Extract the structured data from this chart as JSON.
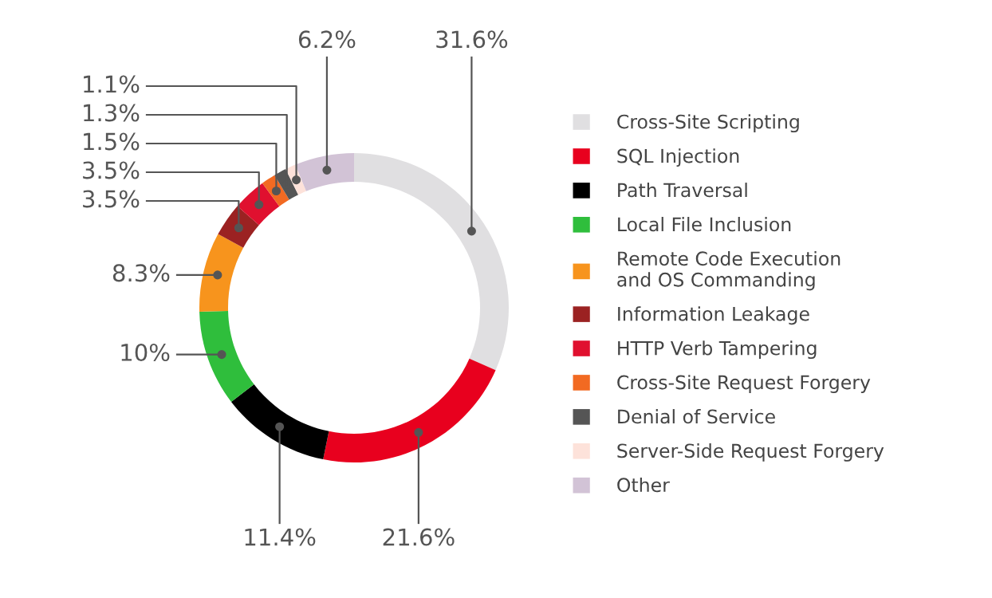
{
  "chart_data": {
    "type": "donut",
    "categories": [
      "Cross-Site Scripting",
      "SQL Injection",
      "Path Traversal",
      "Local File Inclusion",
      "Remote Code Execution\nand OS Commanding",
      "Information Leakage",
      "HTTP Verb Tampering",
      "Cross-Site Request Forgery",
      "Denial of Service",
      "Server-Side Request Forgery",
      "Other"
    ],
    "values": [
      31.6,
      21.6,
      11.4,
      10,
      8.3,
      3.5,
      3.5,
      1.5,
      1.3,
      1.1,
      6.2
    ],
    "colors": [
      "#e0dfe1",
      "#e8001e",
      "#000000",
      "#2fbe3c",
      "#f7941d",
      "#9b2222",
      "#e0102f",
      "#f26a22",
      "#555555",
      "#fde2da",
      "#d2c3d6"
    ],
    "value_labels": [
      "31.6%",
      "21.6%",
      "11.4%",
      "10%",
      "8.3%",
      "3.5%",
      "3.5%",
      "1.5%",
      "1.3%",
      "1.1%",
      "6.2%"
    ],
    "legend": "right"
  }
}
